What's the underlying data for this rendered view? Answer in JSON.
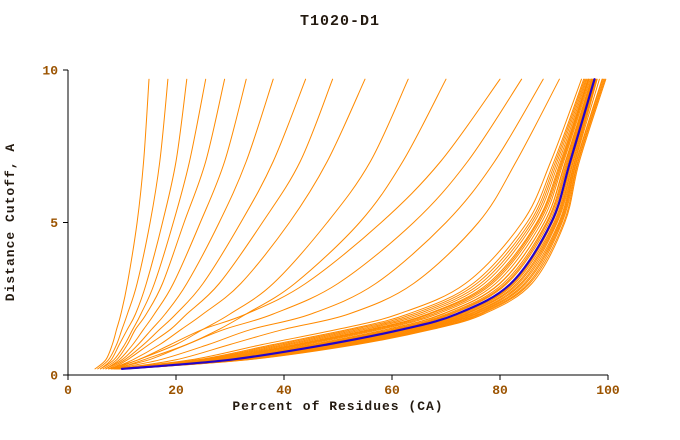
{
  "colors": {
    "orange": "#ff8a00",
    "blue": "#2404c8",
    "axis": "#000000",
    "tick_text": "#9b5300",
    "label_text": "#241a10"
  },
  "chart_data": {
    "type": "line",
    "title": "T1020-D1",
    "xlabel": "Percent of Residues (CA)",
    "ylabel": "Distance Cutoff, A",
    "xlim": [
      0,
      100
    ],
    "ylim": [
      0,
      10
    ],
    "xticks": [
      0,
      20,
      40,
      60,
      80,
      100
    ],
    "yticks": [
      0,
      5,
      10
    ],
    "grid": false,
    "legend": "none",
    "y_levels": [
      0.2,
      0.5,
      1,
      1.5,
      2,
      3,
      5,
      7,
      9.7
    ],
    "series": [
      {
        "color": "orange",
        "width": 1,
        "x": [
          8.2,
          22.8,
          36,
          50,
          61.2,
          73.6,
          84.1,
          89.4,
          95.1
        ]
      },
      {
        "color": "orange",
        "width": 1,
        "x": [
          8.5,
          24,
          38,
          52,
          63,
          75,
          85,
          90,
          95.5
        ]
      },
      {
        "color": "orange",
        "width": 1,
        "x": [
          8.7,
          24.6,
          39,
          53,
          63.9,
          75.7,
          85.5,
          90.3,
          95.7
        ]
      },
      {
        "color": "orange",
        "width": 1,
        "x": [
          8.8,
          25.2,
          40,
          54,
          64.8,
          76.4,
          85.9,
          90.6,
          95.9
        ]
      },
      {
        "color": "orange",
        "width": 1,
        "x": [
          9,
          25.8,
          41,
          55,
          65.7,
          77.1,
          86.3,
          90.9,
          96.1
        ]
      },
      {
        "color": "orange",
        "width": 1,
        "x": [
          9.1,
          26.4,
          42,
          56,
          66.6,
          77.8,
          86.8,
          91.2,
          96.3
        ]
      },
      {
        "color": "orange",
        "width": 1,
        "x": [
          9.2,
          26.7,
          42.5,
          56.5,
          67,
          78.2,
          87,
          91.4,
          96.4
        ]
      },
      {
        "color": "orange",
        "width": 1,
        "x": [
          9.3,
          27.1,
          43.2,
          57.2,
          67.7,
          78.6,
          87.3,
          91.6,
          96.5
        ]
      },
      {
        "color": "orange",
        "width": 1,
        "x": [
          9.4,
          27.6,
          44,
          58,
          68.4,
          79.2,
          87.7,
          91.8,
          96.7
        ]
      },
      {
        "color": "orange",
        "width": 1,
        "x": [
          9.6,
          28.2,
          45,
          59,
          69.3,
          79.9,
          88.2,
          92.1,
          96.9
        ]
      },
      {
        "color": "orange",
        "width": 1,
        "x": [
          9.6,
          28.3,
          45.2,
          59.2,
          69.5,
          80,
          88.2,
          92.2,
          97
        ]
      },
      {
        "color": "orange",
        "width": 1,
        "x": [
          9.7,
          28.8,
          46,
          60,
          70.2,
          80.6,
          88.6,
          92.4,
          97.1
        ]
      },
      {
        "color": "orange",
        "width": 1,
        "x": [
          9.8,
          29.1,
          46.5,
          60.5,
          70.7,
          81,
          88.8,
          92.6,
          97.2
        ]
      },
      {
        "color": "orange",
        "width": 1,
        "x": [
          9.9,
          29.4,
          47,
          61,
          71.1,
          81.3,
          89.1,
          92.7,
          97.3
        ]
      },
      {
        "color": "orange",
        "width": 1,
        "x": [
          10,
          30,
          48,
          62,
          72,
          82,
          89.5,
          93,
          97.5
        ]
      },
      {
        "color": "orange",
        "width": 1,
        "x": [
          10.1,
          30.3,
          48.5,
          62.5,
          72.5,
          82.4,
          89.7,
          93.2,
          97.6
        ]
      },
      {
        "color": "orange",
        "width": 1,
        "x": [
          10.2,
          30.6,
          49,
          63,
          72.9,
          82.7,
          90,
          93.3,
          97.7
        ]
      },
      {
        "color": "orange",
        "width": 1,
        "x": [
          10.2,
          30.9,
          49.5,
          63.5,
          73.4,
          83.1,
          90.2,
          93.5,
          97.8
        ]
      },
      {
        "color": "orange",
        "width": 1,
        "x": [
          10.3,
          31.2,
          50,
          64,
          73.8,
          83.4,
          90.4,
          93.6,
          97.9
        ]
      },
      {
        "color": "orange",
        "width": 1,
        "x": [
          10.4,
          31.5,
          50.5,
          64.5,
          74.3,
          83.8,
          90.6,
          93.8,
          98
        ]
      },
      {
        "color": "orange",
        "width": 1,
        "x": [
          10.5,
          31.8,
          51,
          65,
          74.7,
          84.1,
          90.9,
          93.9,
          98.4
        ]
      },
      {
        "color": "orange",
        "width": 1,
        "x": [
          10.5,
          32.1,
          51.5,
          65.5,
          75.2,
          84.5,
          91.1,
          94.1,
          98.9
        ]
      },
      {
        "color": "orange",
        "width": 1,
        "x": [
          10.6,
          32.4,
          52,
          66,
          75.6,
          84.8,
          91.3,
          94.2,
          99
        ]
      },
      {
        "color": "orange",
        "width": 1,
        "x": [
          10.7,
          32.7,
          52.5,
          66.5,
          76.1,
          85.2,
          91.5,
          94.4,
          99.2
        ]
      },
      {
        "color": "orange",
        "width": 1,
        "x": [
          10.8,
          33,
          53,
          67,
          76.5,
          85.5,
          91.8,
          94.5,
          99.4
        ]
      },
      {
        "color": "orange",
        "width": 1,
        "x": [
          10.8,
          33.3,
          53.5,
          67.5,
          77,
          85.9,
          92,
          94.7,
          99.6
        ]
      },
      {
        "color": "orange",
        "width": 1,
        "x": [
          9,
          20,
          30,
          40,
          52,
          64,
          76,
          83,
          91
        ]
      },
      {
        "color": "orange",
        "width": 1,
        "x": [
          8.5,
          17,
          26,
          34,
          45,
          57,
          70,
          79,
          88
        ]
      },
      {
        "color": "orange",
        "width": 1,
        "x": [
          8,
          15,
          22,
          29,
          38,
          50,
          64,
          74,
          84
        ]
      },
      {
        "color": "orange",
        "width": 1,
        "x": [
          7.5,
          13,
          19,
          25,
          33,
          44,
          58,
          69,
          80
        ]
      },
      {
        "color": "orange",
        "width": 1,
        "x": [
          9,
          14,
          22,
          28,
          33,
          42,
          54,
          62,
          70
        ]
      },
      {
        "color": "orange",
        "width": 1,
        "x": [
          8.5,
          13,
          20,
          25,
          30,
          38,
          48,
          56,
          63
        ]
      },
      {
        "color": "orange",
        "width": 1,
        "x": [
          8,
          12,
          17,
          21,
          25,
          32,
          41,
          48,
          55
        ]
      },
      {
        "color": "orange",
        "width": 1,
        "x": [
          8,
          11,
          15,
          19,
          22,
          28,
          36,
          43,
          49
        ]
      },
      {
        "color": "orange",
        "width": 1,
        "x": [
          7.5,
          10.5,
          14,
          17,
          20,
          25,
          32,
          38,
          44
        ]
      },
      {
        "color": "orange",
        "width": 1,
        "x": [
          7,
          10,
          13,
          15.5,
          18,
          22,
          28,
          33,
          38
        ]
      },
      {
        "color": "orange",
        "width": 1,
        "x": [
          7,
          9.5,
          12,
          14,
          16,
          19.5,
          24.5,
          29,
          33
        ]
      },
      {
        "color": "orange",
        "width": 1,
        "x": [
          6.5,
          9,
          11,
          12.5,
          14.5,
          17.5,
          21.5,
          25.5,
          29
        ]
      },
      {
        "color": "orange",
        "width": 1,
        "x": [
          6,
          8.5,
          10.5,
          12,
          13.5,
          16,
          19.5,
          22.5,
          25.5
        ]
      },
      {
        "color": "orange",
        "width": 1,
        "x": [
          6,
          8,
          9.5,
          11,
          12.5,
          14.5,
          17.5,
          20,
          22
        ]
      },
      {
        "color": "orange",
        "width": 1,
        "x": [
          5.5,
          7.5,
          9,
          10,
          11,
          12.8,
          15.2,
          17,
          18.5
        ]
      },
      {
        "color": "orange",
        "width": 1,
        "x": [
          5,
          7,
          8.2,
          9,
          9.8,
          11,
          12.8,
          14,
          15
        ]
      },
      {
        "color": "blue",
        "width": 2.2,
        "highlight": true,
        "x": [
          10,
          30,
          48,
          62,
          72,
          82,
          89.5,
          93,
          97.5
        ]
      }
    ]
  }
}
